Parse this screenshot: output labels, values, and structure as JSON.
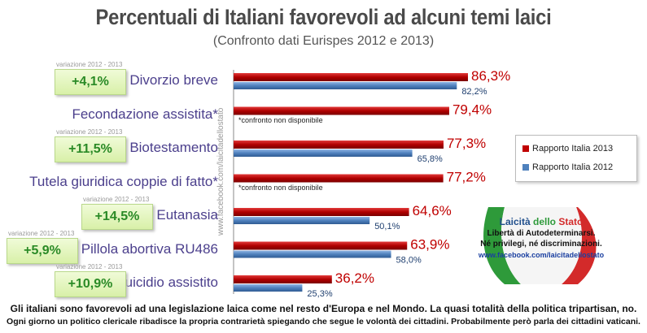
{
  "title": "Percentuali di Italiani favorevoli ad alcuni temi laici",
  "subtitle": "(Confronto dati Eurispes 2012 e 2013)",
  "side_text": "www.facebook.com/laicitadellostato",
  "delta_caption": "variazione 2012 - 2013",
  "na_note": "*confronto non disponibile",
  "colors": {
    "series_2013": "#c00000",
    "series_2012": "#4f81bd",
    "label_2013": "#c00000",
    "label_2012": "#1f3f6f"
  },
  "legend": [
    {
      "label": "Rapporto Italia 2013",
      "color": "#c00000"
    },
    {
      "label": "Rapporto Italia 2012",
      "color": "#4f81bd"
    }
  ],
  "logo": {
    "title_a": "Laicità",
    "title_b": " dello ",
    "title_c": "Stato",
    "line1": "Libertà di Autodeterminarsi.",
    "line2": "Né privilegi, né discriminazioni.",
    "url": "www.facebook.com/laicitadellostato"
  },
  "footer": {
    "line1": "Gli italiani sono favorevoli ad una legislazione laica come nel resto d'Europa e nel Mondo. La quasi totalità della politica tripartisan, no.",
    "line2": "Ogni giorno un politico clericale ribadisce la propria contrarietà spiegando che segue le volontà dei cittadini. Probabilmente però parla dei cittadini vaticani."
  },
  "chart_data": {
    "type": "bar",
    "orientation": "horizontal",
    "title": "Percentuali di Italiani favorevoli ad alcuni temi laici",
    "subtitle": "(Confronto dati Eurispes 2012 e 2013)",
    "categories": [
      "Divorzio breve",
      "Fecondazione assistita*",
      "Biotestamento",
      "Tutela giuridica coppie di fatto*",
      "Eutanasia",
      "Pillola abortiva RU486",
      "Suicidio assistito"
    ],
    "series": [
      {
        "name": "Rapporto Italia 2013",
        "values": [
          86.3,
          79.4,
          77.3,
          77.2,
          64.6,
          63.9,
          36.2
        ],
        "labels": [
          "86,3%",
          "79,4%",
          "77,3%",
          "77,2%",
          "64,6%",
          "63,9%",
          "36,2%"
        ]
      },
      {
        "name": "Rapporto Italia 2012",
        "values": [
          82.2,
          null,
          65.8,
          null,
          50.1,
          58.0,
          25.3
        ],
        "labels": [
          "82,2%",
          "",
          "65,8%",
          "",
          "50,1%",
          "58,0%",
          "25,3%"
        ]
      }
    ],
    "variations": [
      "+4,1%",
      "",
      "+11,5%",
      "",
      "+14,5%",
      "+5,9%",
      "+10,9%"
    ],
    "xlim": [
      0,
      100
    ],
    "legend_position": "right",
    "grid": false
  }
}
